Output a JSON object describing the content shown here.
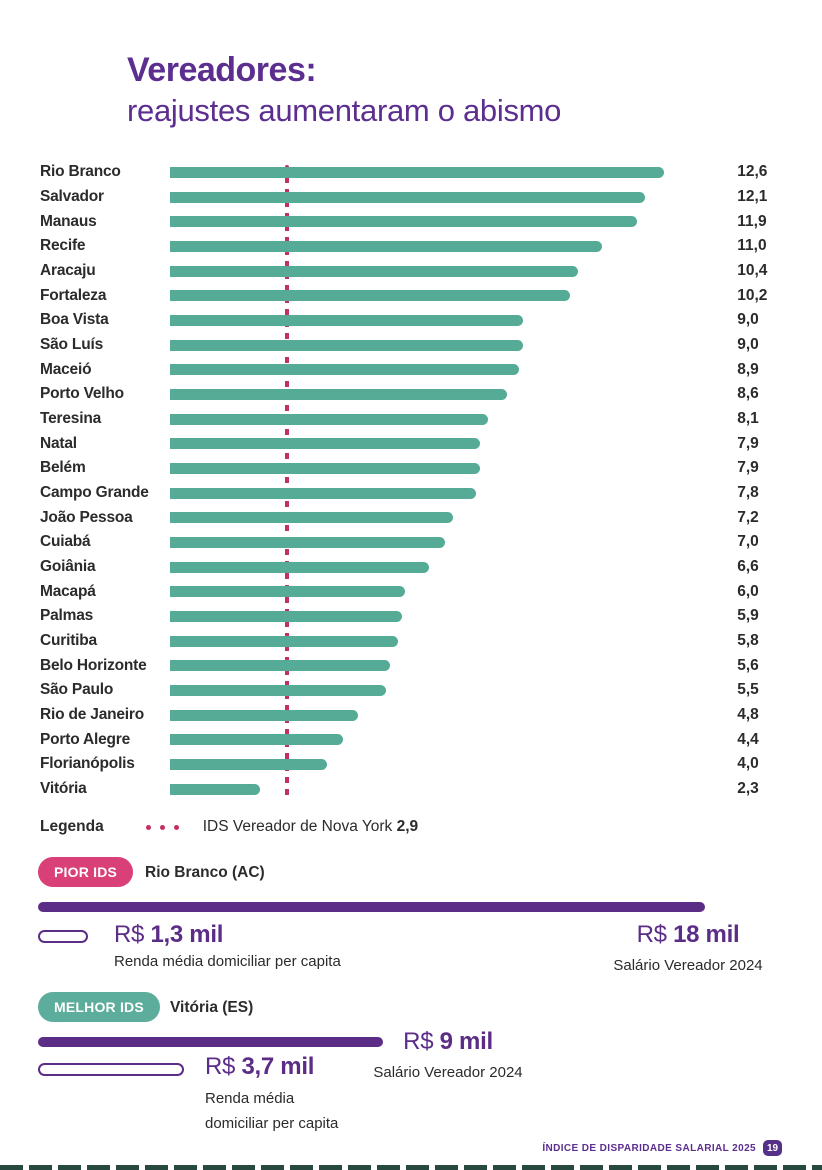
{
  "header": {
    "title_bold": "Vereadores:",
    "title_rest": "reajustes aumentaram o abismo"
  },
  "chart_data": {
    "type": "bar",
    "orientation": "horizontal",
    "title": "Vereadores: reajustes aumentaram o abismo",
    "categories": [
      "Rio Branco",
      "Salvador",
      "Manaus",
      "Recife",
      "Aracaju",
      "Fortaleza",
      "Boa Vista",
      "São Luís",
      "Maceió",
      "Porto Velho",
      "Teresina",
      "Natal",
      "Belém",
      "Campo Grande",
      "João Pessoa",
      "Cuiabá",
      "Goiânia",
      "Macapá",
      "Palmas",
      "Curitiba",
      "Belo Horizonte",
      "São Paulo",
      "Rio de Janeiro",
      "Porto Alegre",
      "Florianópolis",
      "Vitória"
    ],
    "values": [
      12.6,
      12.1,
      11.9,
      11.0,
      10.4,
      10.2,
      9.0,
      9.0,
      8.9,
      8.6,
      8.1,
      7.9,
      7.9,
      7.8,
      7.2,
      7.0,
      6.6,
      6.0,
      5.9,
      5.8,
      5.6,
      5.5,
      4.8,
      4.4,
      4.0,
      2.3
    ],
    "value_labels": [
      "12,6",
      "12,1",
      "11,9",
      "11,0",
      "10,4",
      "10,2",
      "9,0",
      "9,0",
      "8,9",
      "8,6",
      "8,1",
      "7,9",
      "7,9",
      "7,8",
      "7,2",
      "7,0",
      "6,6",
      "6,0",
      "5,9",
      "5,8",
      "5,6",
      "5,5",
      "4,8",
      "4,4",
      "4,0",
      "2,3"
    ],
    "xlim": [
      0,
      12.6
    ],
    "bar_color": "#55ab96",
    "grid": false,
    "legend_position": "below",
    "reference_line": {
      "value": 2.9,
      "value_label": "2,9",
      "label": "IDS Vereador de Nova York",
      "style": "dotted",
      "color": "#c42f63"
    }
  },
  "legend": {
    "label": "Legenda",
    "ref_text": "IDS Vereador de Nova York ",
    "ref_value": "2,9"
  },
  "worst_section": {
    "badge_label": "PIOR IDS",
    "badge_color": "#d84077",
    "city": "Rio Branco (AC)",
    "income_prefix": "R$ ",
    "income_amount": "1,3 mil",
    "income_caption": "Renda média domiciliar per capita",
    "salary_prefix": "R$ ",
    "salary_amount": "18 mil",
    "salary_caption": "Salário Vereador 2024"
  },
  "best_section": {
    "badge_label": "MELHOR IDS",
    "badge_color": "#5cad9b",
    "city": "Vitória (ES)",
    "salary_prefix": "R$ ",
    "salary_amount": "9 mil",
    "salary_caption": "Salário Vereador 2024",
    "income_prefix": "R$ ",
    "income_amount": "3,7 mil",
    "income_caption_line1": "Renda média",
    "income_caption_line2": "domiciliar per capita"
  },
  "footer": {
    "label": "ÍNDICE DE DISPARIDADE SALARIAL 2025",
    "page_number": "19"
  },
  "colors": {
    "title_purple": "#5b2e8f",
    "bar_teal": "#55ab96",
    "reference_pink": "#c42f63",
    "badge_pink": "#d84077",
    "badge_teal": "#5cad9b",
    "salary_purple": "#5b2d87",
    "dark_text": "#2b2b2b"
  }
}
